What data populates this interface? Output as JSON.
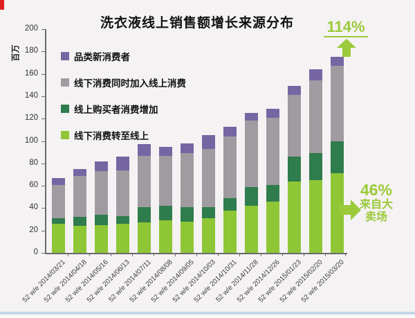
{
  "title": "洗衣液线上销售额增长来源分布",
  "annotations": {
    "growth_pct": "114%",
    "hypermarket_pct": "46%",
    "hypermarket_line1": "来自大",
    "hypermarket_line2": "卖场"
  },
  "colors": {
    "background": "#f5f2f3",
    "accent_green": "#9bca3b",
    "axis": "#6b6b6b",
    "series_new_category_buyers": "#7566a3",
    "series_offline_plus_online": "#a09ba1",
    "series_online_buyer_increase": "#2f7c4d",
    "series_offline_to_online": "#8ec636"
  },
  "chart_data": {
    "type": "bar",
    "stacked": true,
    "title": "洗衣液线上销售额增长来源分布",
    "ylabel": "百万",
    "xlabel": "",
    "ylim": [
      0,
      200
    ],
    "ytick_step": 20,
    "grid": false,
    "legend_position": "upper-left-inside",
    "legend_order": "reversed",
    "categories": [
      "52 w/e 2014/03/21",
      "52 w/e 2014/04/18",
      "52 w/e 2014/05/16",
      "52 w/e 2014/06/13",
      "52 w/e 2014/07/11",
      "52 w/e 2014/08/08",
      "52 w/e 2014/09/05",
      "52 w/e 2014/10/03",
      "52 w/e 2014/10/31",
      "52 w/e 2014/11/28",
      "52 w/e 2014/12/26",
      "52 w/e 2015/01/23",
      "52 w/e 2015/02/20",
      "52 w/e 2015/03/20"
    ],
    "series": [
      {
        "name": "线下消费转至线上",
        "color": "#8ec636",
        "values": [
          26,
          24,
          25,
          26,
          27,
          29,
          28,
          31,
          38,
          42,
          46,
          64,
          65,
          71
        ]
      },
      {
        "name": "线上购买者消费增加",
        "color": "#2f7c4d",
        "values": [
          5,
          8,
          9,
          7,
          14,
          13,
          13,
          10,
          11,
          17,
          15,
          22,
          24,
          29
        ]
      },
      {
        "name": "线下消费同时加入线上消费",
        "color": "#a09ba1",
        "values": [
          30,
          37,
          39,
          41,
          46,
          45,
          48,
          52,
          55,
          59,
          60,
          55,
          65,
          67
        ]
      },
      {
        "name": "品类新消费者",
        "color": "#7566a3",
        "values": [
          6,
          6,
          9,
          12,
          10,
          8,
          9,
          12,
          9,
          7,
          8,
          8,
          10,
          8
        ]
      }
    ],
    "totals": [
      67,
      75,
      82,
      86,
      97,
      95,
      98,
      105,
      113,
      125,
      129,
      149,
      164,
      175
    ]
  }
}
